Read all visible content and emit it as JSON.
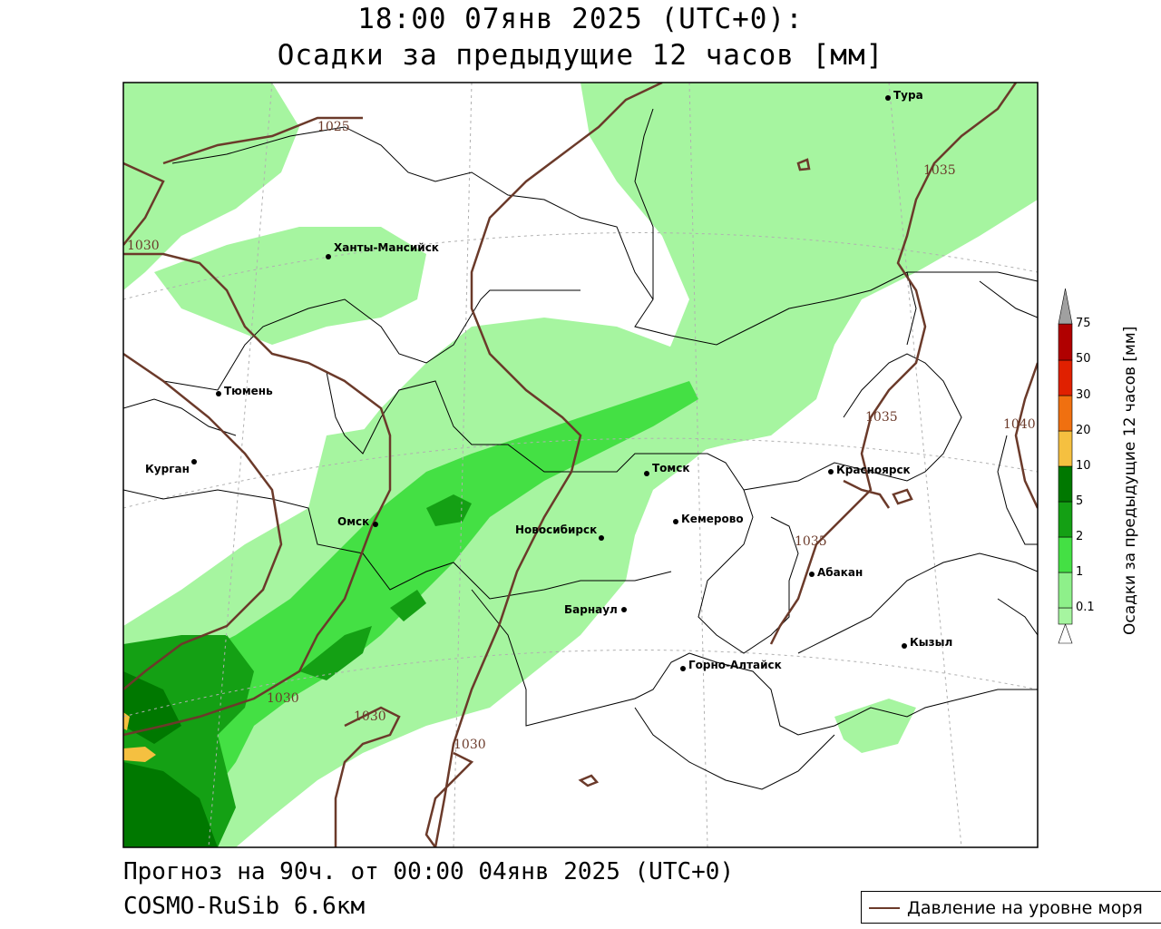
{
  "title": {
    "line1": "18:00 07янв 2025 (UTC+0):",
    "line2": "Осадки за предыдущие 12 часов [мм]"
  },
  "footer": {
    "forecast": "Прогноз на 90ч. от 00:00 04янв 2025 (UTC+0)",
    "model": "COSMO-RuSib 6.6км"
  },
  "legend": {
    "pressure_label": "Давление на уровне моря",
    "pressure_color": "#6b3a2a"
  },
  "colorbar": {
    "title": "Осадки за предыдущие 12 часов [мм]",
    "ticks": [
      "0.1",
      "1",
      "2",
      "5",
      "10",
      "20",
      "30",
      "50",
      "75"
    ],
    "colors": [
      "#a6f5a0",
      "#8ef08a",
      "#44e044",
      "#14a014",
      "#007800",
      "#f5c040",
      "#f07010",
      "#e02000",
      "#b00000",
      "#a0a0a0"
    ]
  },
  "cities": [
    {
      "name": "Тура"
    },
    {
      "name": "Ханты-Мансийск"
    },
    {
      "name": "Тюмень"
    },
    {
      "name": "Курган"
    },
    {
      "name": "Омск"
    },
    {
      "name": "Новосибирск"
    },
    {
      "name": "Томск"
    },
    {
      "name": "Кемерово"
    },
    {
      "name": "Красноярск"
    },
    {
      "name": "Абакан"
    },
    {
      "name": "Барнаул"
    },
    {
      "name": "Горно-Алтайск"
    },
    {
      "name": "Кызыл"
    }
  ],
  "isobar_labels": [
    "1025",
    "1030",
    "1035",
    "1035",
    "1035",
    "1040",
    "1030",
    "1030",
    "1030"
  ]
}
